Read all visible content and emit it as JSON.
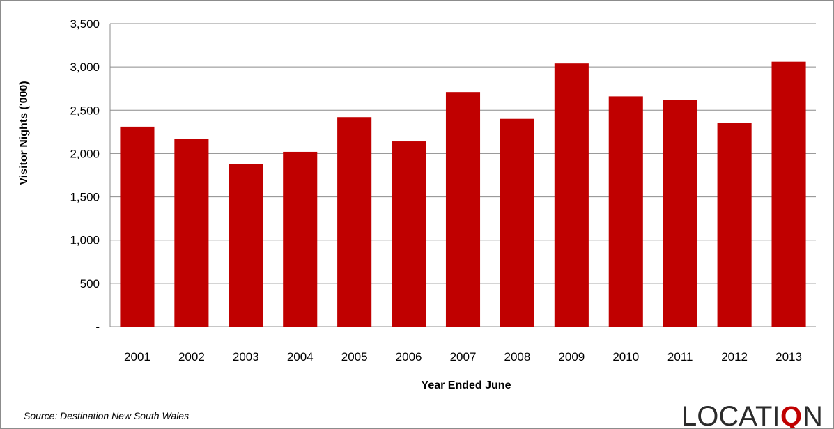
{
  "chart_data": {
    "type": "bar",
    "categories": [
      "2001",
      "2002",
      "2003",
      "2004",
      "2005",
      "2006",
      "2007",
      "2008",
      "2009",
      "2010",
      "2011",
      "2012",
      "2013"
    ],
    "values": [
      2310,
      2170,
      1880,
      2020,
      2420,
      2140,
      2710,
      2400,
      3040,
      2660,
      2620,
      2355,
      3060
    ],
    "xlabel": "Year Ended June",
    "ylabel": "Visitor Nights ('000)",
    "ylim": [
      0,
      3500
    ],
    "yticks": [
      0,
      500,
      1000,
      1500,
      2000,
      2500,
      3000,
      3500
    ],
    "ytick_labels": [
      "-",
      "500",
      "1,000",
      "1,500",
      "2,000",
      "2,500",
      "3,000",
      "3,500"
    ],
    "bar_color": "#C00000",
    "grid": true,
    "legend": "none"
  },
  "source_text": "Source: Destination New South Wales",
  "logo": {
    "text_main": "LOCATI",
    "text_accent": "Q",
    "text_end": "N",
    "accent_color": "#C00000"
  }
}
